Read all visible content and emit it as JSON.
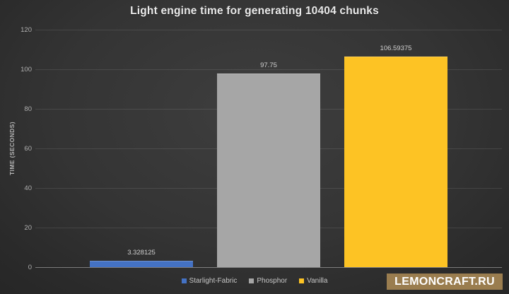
{
  "title": "Light engine time for generating 10404 chunks",
  "watermark": "LEMONCRAFT.RU",
  "chart_data": {
    "type": "bar",
    "title": "Light engine time for generating 10404 chunks",
    "xlabel": "",
    "ylabel": "TIME (SECONDS)",
    "categories": [
      "Starlight-Fabric",
      "Phosphor",
      "Vanilla"
    ],
    "values": [
      3.328125,
      97.75,
      106.59375
    ],
    "value_labels": [
      "3.328125",
      "97.75",
      "106.59375"
    ],
    "colors": [
      "#4472c4",
      "#a6a6a6",
      "#fdc324"
    ],
    "ylim": [
      0,
      120
    ],
    "yticks": [
      0,
      20,
      40,
      60,
      80,
      100,
      120
    ],
    "grid": true,
    "legend_position": "bottom"
  },
  "palette": {
    "background_center": "#3e3e3e",
    "background_edge": "#222222",
    "title_text": "#eaeaea",
    "axis_text": "#b0b0b0",
    "value_label_text": "#cfcfcf",
    "gridline": "rgba(255,255,255,0.10)",
    "axis_line": "rgba(255,255,255,0.38)",
    "watermark_background": "#9a7d4f",
    "watermark_text": "#ffffff"
  }
}
